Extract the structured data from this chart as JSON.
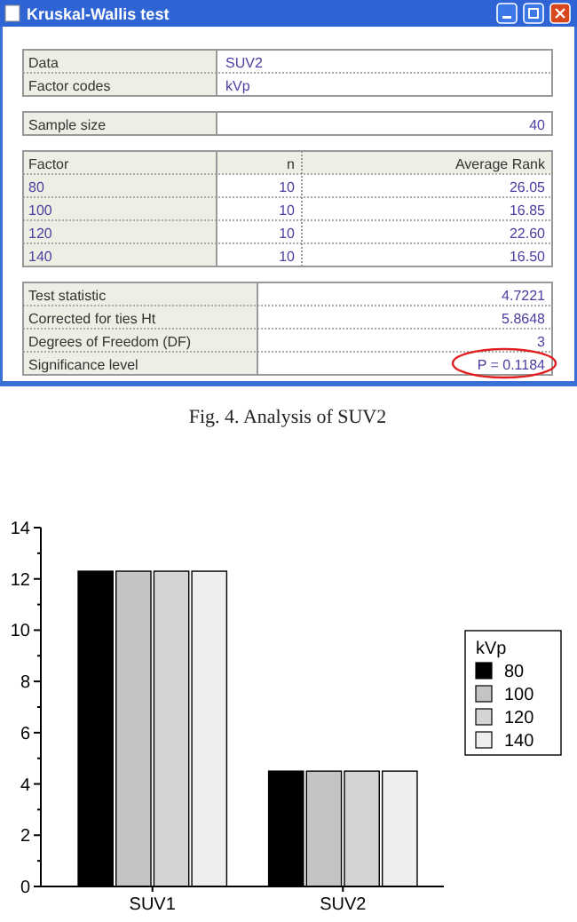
{
  "chart_data": [
    {
      "type": "other",
      "title": "Kruskal-Wallis test",
      "subtitle": "Fig. 4. Analysis of SUV2",
      "annotations": [
        "Data",
        "SUV2",
        "Factor codes",
        "kVp",
        "Sample size",
        "40",
        "Factor",
        "n",
        "Average Rank",
        "80",
        "10",
        "26.05",
        "100",
        "10",
        "16.85",
        "120",
        "10",
        "22.60",
        "140",
        "10",
        "16.50",
        "Test statistic",
        "4.7221",
        "Corrected for ties  Ht",
        "5.8648",
        "Degrees of Freedom (DF)",
        "3",
        "Significance level",
        "P = 0.1184"
      ]
    },
    {
      "type": "bar",
      "categories": [
        "SUV1",
        "SUV2"
      ],
      "series": [
        {
          "name": "80",
          "color": "#000000",
          "values": [
            12.3,
            4.5
          ]
        },
        {
          "name": "100",
          "color": "#c4c4c4",
          "values": [
            12.3,
            4.5
          ]
        },
        {
          "name": "120",
          "color": "#d4d4d4",
          "values": [
            12.3,
            4.5
          ]
        },
        {
          "name": "140",
          "color": "#eeeeee",
          "values": [
            12.3,
            4.5
          ]
        }
      ],
      "ylim": [
        0,
        14
      ],
      "yticks": [
        0,
        2,
        4,
        6,
        8,
        10,
        12,
        14
      ],
      "legend": "right",
      "legend_title": "kVp",
      "grid": false
    }
  ]
}
